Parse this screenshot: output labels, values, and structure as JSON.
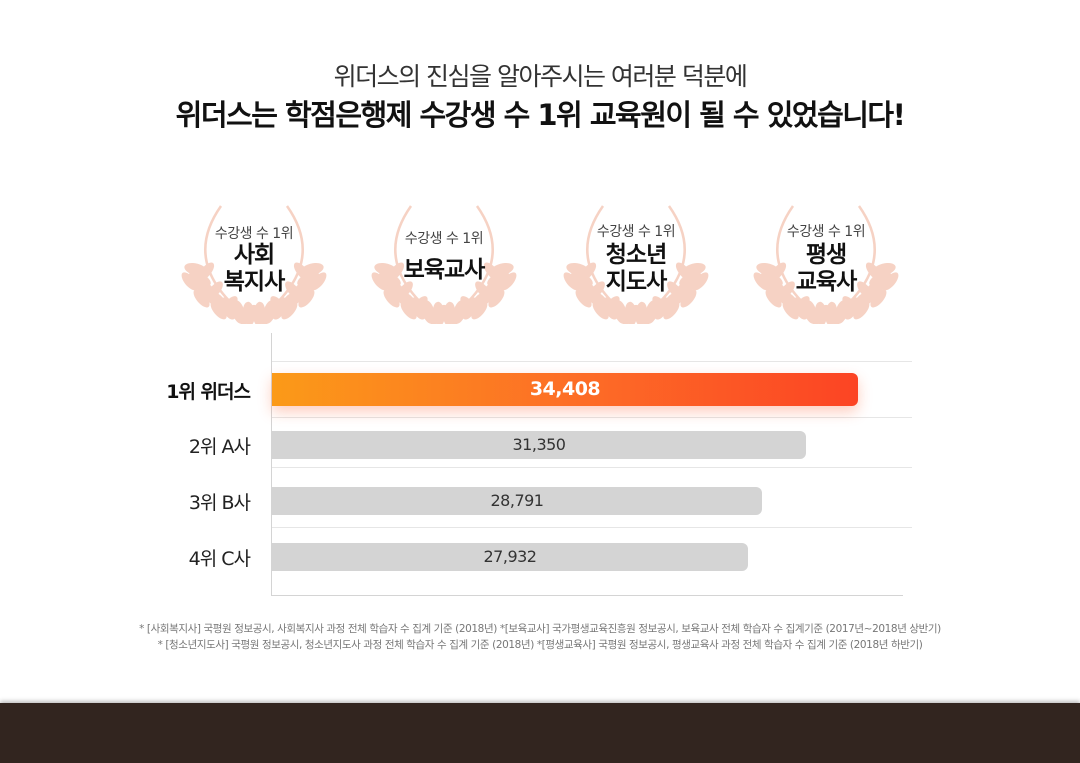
{
  "header": {
    "sub_heading": "위더스의 진심을 알아주시는 여러분 덕분에",
    "heading": "위더스는 학점은행제 수강생 수 1위 교육원이 될 수 있었습니다!"
  },
  "badges": [
    {
      "rank": "수강생 수 1위",
      "field_line1": "사회",
      "field_line2": "복지사"
    },
    {
      "rank": "수강생 수 1위",
      "field_line1": "보육교사",
      "field_line2": ""
    },
    {
      "rank": "수강생 수 1위",
      "field_line1": "청소년",
      "field_line2": "지도사"
    },
    {
      "rank": "수강생 수 1위",
      "field_line1": "평생",
      "field_line2": "교육사"
    }
  ],
  "colors": {
    "highlight_start": "#fb9a18",
    "highlight_end": "#fc4424",
    "bar_gray": "#d4d4d4",
    "laurel": "#f6d2c4",
    "footer": "#32251f"
  },
  "chart_data": {
    "type": "bar",
    "orientation": "horizontal",
    "categories": [
      "1위 위더스",
      "2위 A사",
      "3위 B사",
      "4위 C사"
    ],
    "values": [
      34408,
      31350,
      28791,
      27932
    ],
    "value_labels": [
      "34,408",
      "31,350",
      "28,791",
      "27,932"
    ],
    "highlight_index": 0,
    "grid": true
  },
  "footnotes": [
    "* [사회복지사] 국평원 정보공시, 사회복지사 과정 전체 학습자 수 집계 기준 (2018년) *[보육교사] 국가평생교육진흥원 정보공시, 보육교사 전체 학습자 수 집계기준 (2017년~2018년 상반기)",
    "* [청소년지도사] 국평원 정보공시, 청소년지도사 과정 전체 학습자 수 집계 기준 (2018년) *[평생교육사] 국평원 정보공시, 평생교육사 과정 전체 학습자 수 집계 기준 (2018년 하반기)"
  ]
}
